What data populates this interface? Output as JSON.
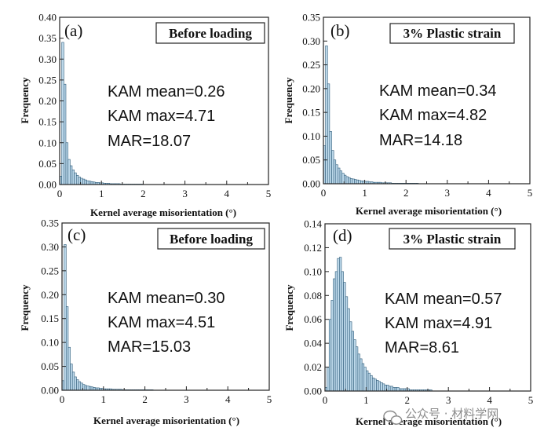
{
  "colors": {
    "bar_fill": "#bcd8ea",
    "bar_stroke": "#2d5a78",
    "axis": "#222222",
    "watermark": "#8a8a8a"
  },
  "watermark": {
    "icon": "wechat-icon",
    "text": "公众号 · 材料学网"
  },
  "chart_data": [
    {
      "type": "bar",
      "panel": "(a)",
      "condition": "Before loading",
      "stats": {
        "kam_mean": "KAM mean=0.26",
        "kam_max": "KAM max=4.71",
        "mar": "MAR=18.07"
      },
      "xlabel": "Kernel average misorientation (°)",
      "ylabel": "Frequency",
      "xlim": [
        0,
        5
      ],
      "ylim": [
        0,
        0.4
      ],
      "xticks": [
        "0",
        "1",
        "2",
        "3",
        "4",
        "5"
      ],
      "yticks": [
        "0.00",
        "0.05",
        "0.10",
        "0.15",
        "0.20",
        "0.25",
        "0.30",
        "0.35",
        "0.40"
      ],
      "bin_width": 0.05,
      "values": [
        0.02,
        0.34,
        0.24,
        0.1,
        0.06,
        0.045,
        0.035,
        0.028,
        0.022,
        0.018,
        0.015,
        0.013,
        0.011,
        0.009,
        0.008,
        0.007,
        0.006,
        0.005,
        0.005,
        0.004,
        0.004,
        0.003,
        0.003,
        0.003,
        0.002,
        0.002,
        0.002,
        0.002,
        0.002,
        0.001,
        0.001,
        0.001,
        0.001,
        0.001,
        0.001,
        0.001,
        0.001,
        0.001,
        0.001,
        0.001
      ]
    },
    {
      "type": "bar",
      "panel": "(b)",
      "condition": "3% Plastic strain",
      "stats": {
        "kam_mean": "KAM mean=0.34",
        "kam_max": "KAM max=4.82",
        "mar": "MAR=14.18"
      },
      "xlabel": "Kernel average misorientation (°)",
      "ylabel": "Frequency",
      "xlim": [
        0,
        5
      ],
      "ylim": [
        0,
        0.35
      ],
      "xticks": [
        "0",
        "1",
        "2",
        "3",
        "4",
        "5"
      ],
      "yticks": [
        "0.00",
        "0.05",
        "0.10",
        "0.15",
        "0.20",
        "0.25",
        "0.30",
        "0.35"
      ],
      "bin_width": 0.05,
      "values": [
        0.08,
        0.29,
        0.21,
        0.11,
        0.07,
        0.05,
        0.04,
        0.033,
        0.027,
        0.022,
        0.018,
        0.015,
        0.013,
        0.011,
        0.01,
        0.009,
        0.008,
        0.007,
        0.006,
        0.006,
        0.005,
        0.005,
        0.004,
        0.004,
        0.003,
        0.003,
        0.003,
        0.003,
        0.002,
        0.002,
        0.002,
        0.002,
        0.002,
        0.001,
        0.001,
        0.001,
        0.001,
        0.001,
        0.001,
        0.001,
        0.001,
        0.001,
        0.001,
        0.001,
        0.001,
        0.001
      ]
    },
    {
      "type": "bar",
      "panel": "(c)",
      "condition": "Before loading",
      "stats": {
        "kam_mean": "KAM mean=0.30",
        "kam_max": "KAM max=4.51",
        "mar": "MAR=15.03"
      },
      "xlabel": "Kernel average misorientation (°)",
      "ylabel": "Frequency",
      "xlim": [
        0,
        5
      ],
      "ylim": [
        0,
        0.35
      ],
      "xticks": [
        "0",
        "1",
        "2",
        "3",
        "4",
        "5"
      ],
      "yticks": [
        "0.00",
        "0.05",
        "0.10",
        "0.15",
        "0.20",
        "0.25",
        "0.30",
        "0.35"
      ],
      "bin_width": 0.05,
      "values": [
        0.02,
        0.305,
        0.175,
        0.09,
        0.055,
        0.038,
        0.028,
        0.022,
        0.018,
        0.015,
        0.012,
        0.01,
        0.009,
        0.008,
        0.007,
        0.006,
        0.005,
        0.005,
        0.004,
        0.004,
        0.003,
        0.003,
        0.003,
        0.003,
        0.002,
        0.002,
        0.002,
        0.002,
        0.002,
        0.001,
        0.001,
        0.001,
        0.001,
        0.001,
        0.001,
        0.001,
        0.001,
        0.001,
        0.001,
        0.001,
        0.001,
        0.001,
        0.001,
        0.001
      ]
    },
    {
      "type": "bar",
      "panel": "(d)",
      "condition": "3% Plastic strain",
      "stats": {
        "kam_mean": "KAM mean=0.57",
        "kam_max": "KAM max=4.91",
        "mar": "MAR=8.61"
      },
      "xlabel": "Kernel average misorientation (°)",
      "ylabel": "Frequency",
      "xlim": [
        0,
        5
      ],
      "ylim": [
        0,
        0.14
      ],
      "xticks": [
        "0",
        "1",
        "2",
        "3",
        "4",
        "5"
      ],
      "yticks": [
        "0.00",
        "0.02",
        "0.04",
        "0.06",
        "0.08",
        "0.10",
        "0.12",
        "0.14"
      ],
      "bin_width": 0.05,
      "values": [
        0.003,
        0.02,
        0.06,
        0.076,
        0.094,
        0.1,
        0.111,
        0.112,
        0.1,
        0.091,
        0.079,
        0.069,
        0.058,
        0.05,
        0.043,
        0.037,
        0.031,
        0.027,
        0.023,
        0.02,
        0.017,
        0.015,
        0.013,
        0.011,
        0.01,
        0.009,
        0.008,
        0.007,
        0.006,
        0.005,
        0.005,
        0.004,
        0.004,
        0.003,
        0.003,
        0.003,
        0.002,
        0.002,
        0.002,
        0.002,
        0.002,
        0.001,
        0.001,
        0.001,
        0.001,
        0.001,
        0.001,
        0.001,
        0.001,
        0.001,
        0.001,
        0.001
      ]
    }
  ]
}
